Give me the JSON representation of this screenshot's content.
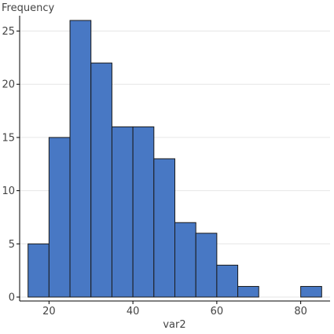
{
  "chart_data": {
    "type": "bar",
    "title": "",
    "xlabel": "var2",
    "ylabel": "Frequency",
    "bin_width": 5,
    "bins": [
      {
        "start": 15,
        "end": 20,
        "count": 5
      },
      {
        "start": 20,
        "end": 25,
        "count": 15
      },
      {
        "start": 25,
        "end": 30,
        "count": 26
      },
      {
        "start": 30,
        "end": 35,
        "count": 22
      },
      {
        "start": 35,
        "end": 40,
        "count": 16
      },
      {
        "start": 40,
        "end": 45,
        "count": 16
      },
      {
        "start": 45,
        "end": 50,
        "count": 13
      },
      {
        "start": 50,
        "end": 55,
        "count": 7
      },
      {
        "start": 55,
        "end": 60,
        "count": 6
      },
      {
        "start": 60,
        "end": 65,
        "count": 3
      },
      {
        "start": 65,
        "end": 70,
        "count": 1
      },
      {
        "start": 70,
        "end": 75,
        "count": 0
      },
      {
        "start": 75,
        "end": 80,
        "count": 0
      },
      {
        "start": 80,
        "end": 85,
        "count": 1
      }
    ],
    "xlim": [
      13,
      87
    ],
    "ylim": [
      0,
      26
    ],
    "xticks": [
      20,
      40,
      60,
      80
    ],
    "yticks": [
      0,
      5,
      10,
      15,
      20,
      25
    ],
    "grid": true,
    "bar_color": "#4878c4",
    "bar_edge_color": "#1a1a1a",
    "grid_color": "#e6e6e6"
  }
}
